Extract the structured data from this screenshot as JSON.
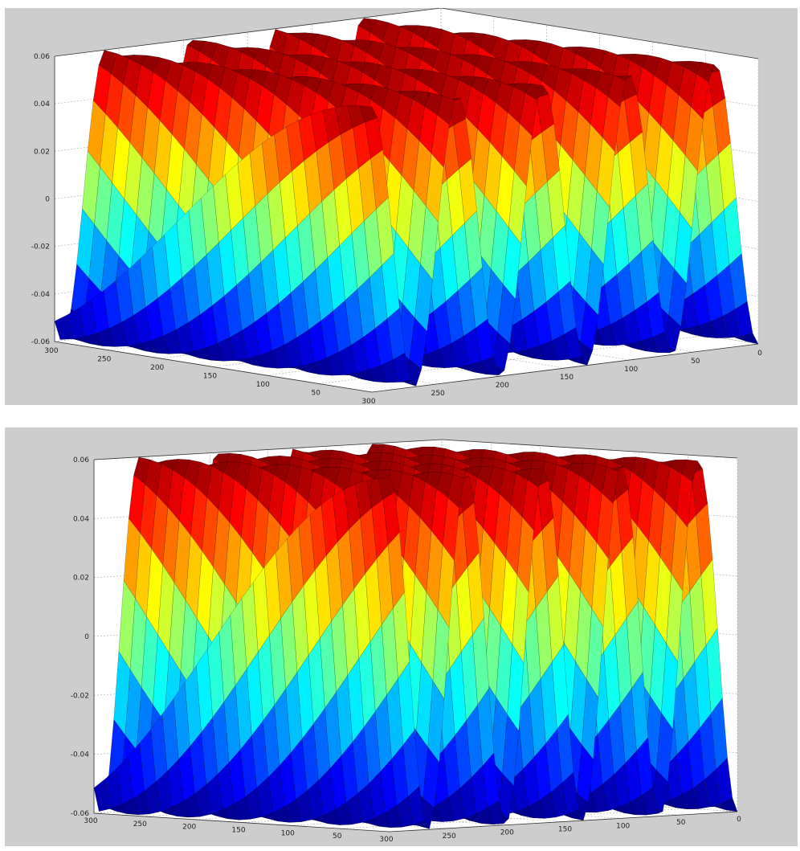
{
  "chart_data": [
    {
      "type": "surface",
      "title": "",
      "xlabel": "",
      "ylabel": "",
      "zlabel": "",
      "colormap": "jet",
      "grid": true,
      "view": "oblique",
      "z_ticks": [
        "0.06",
        "0.04",
        "0.02",
        "0",
        "-0.02",
        "-0.04",
        "-0.06"
      ],
      "y_ticks": [
        "300",
        "250",
        "200",
        "150",
        "100",
        "50"
      ],
      "x_ticks": [
        "300",
        "250",
        "200",
        "150",
        "100",
        "50",
        "0"
      ],
      "xlim": [
        0,
        300
      ],
      "ylim": [
        0,
        300
      ],
      "zlim": [
        -0.06,
        0.06
      ]
    },
    {
      "type": "surface",
      "title": "",
      "xlabel": "",
      "ylabel": "",
      "zlabel": "",
      "colormap": "jet",
      "grid": true,
      "view": "low-elevation",
      "z_ticks": [
        "0.06",
        "0.04",
        "0.02",
        "0",
        "-0.02",
        "-0.04",
        "-0.06"
      ],
      "y_ticks": [
        "300",
        "250",
        "200",
        "150",
        "100",
        "50"
      ],
      "x_ticks": [
        "300",
        "250",
        "200",
        "150",
        "100",
        "50",
        "0"
      ],
      "xlim": [
        0,
        300
      ],
      "ylim": [
        0,
        300
      ],
      "zlim": [
        -0.06,
        0.06
      ]
    }
  ]
}
